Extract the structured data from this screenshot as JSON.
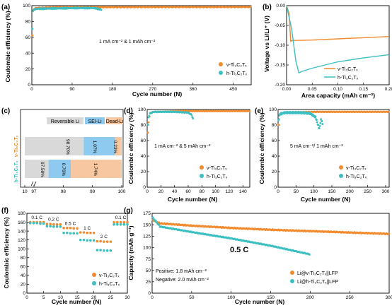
{
  "colors": {
    "v": "#f28a2e",
    "h": "#3cbfc1",
    "rev": "#d9d9d9",
    "sei": "#8ec9ef",
    "dead": "#f7c7a2",
    "axis": "#000000"
  },
  "chart_data": [
    {
      "panel": "(a)",
      "type": "scatter",
      "xlabel": "Cycle number (N)",
      "ylabel": "Coulombic efficiency (%)",
      "xlim": [
        0,
        490
      ],
      "ylim": [
        0,
        100
      ],
      "xticks": [
        0,
        90,
        180,
        270,
        360,
        450
      ],
      "yticks": [
        0,
        20,
        40,
        60,
        80,
        100
      ],
      "annotation": "1 mA cm-2 & 1 mAh cm-2",
      "legend": "bottom-right",
      "series": [
        {
          "name": "v-Ti3C2Tx",
          "points": [
            [
              1,
              62
            ],
            [
              2,
              88
            ],
            [
              3,
              94
            ],
            [
              5,
              96
            ],
            [
              10,
              97
            ],
            [
              50,
              98
            ],
            [
              100,
              98
            ],
            [
              200,
              98.2
            ],
            [
              300,
              98.3
            ],
            [
              400,
              98.3
            ],
            [
              490,
              98.4
            ]
          ]
        },
        {
          "name": "h-Ti3C2Tx",
          "points": [
            [
              1,
              70
            ],
            [
              2,
              90
            ],
            [
              3,
              94
            ],
            [
              5,
              95
            ],
            [
              10,
              96
            ],
            [
              50,
              96.5
            ],
            [
              100,
              97
            ],
            [
              140,
              97
            ],
            [
              155,
              95
            ]
          ]
        }
      ]
    },
    {
      "panel": "(b)",
      "type": "line",
      "xlabel": "Area capacity (mAh cm-2)",
      "ylabel": "Voltage vs Li/Li+ (V)",
      "xlim": [
        0,
        0.2
      ],
      "ylim": [
        -0.2,
        0.0
      ],
      "xticks": [
        0.0,
        0.05,
        0.1,
        0.15,
        0.2
      ],
      "yticks": [
        0.0,
        -0.05,
        -0.1,
        -0.15,
        -0.2
      ],
      "legend": "bottom-right",
      "series": [
        {
          "name": "v-Ti3C2Tx",
          "points": [
            [
              0.0,
              0.0
            ],
            [
              0.005,
              -0.02
            ],
            [
              0.008,
              -0.09
            ],
            [
              0.012,
              -0.088
            ],
            [
              0.05,
              -0.087
            ],
            [
              0.1,
              -0.084
            ],
            [
              0.15,
              -0.081
            ],
            [
              0.2,
              -0.078
            ]
          ]
        },
        {
          "name": "h-Ti3C2Tx",
          "points": [
            [
              0.0,
              0.0
            ],
            [
              0.01,
              -0.06
            ],
            [
              0.018,
              -0.14
            ],
            [
              0.024,
              -0.17
            ],
            [
              0.03,
              -0.166
            ],
            [
              0.05,
              -0.158
            ],
            [
              0.1,
              -0.142
            ],
            [
              0.15,
              -0.132
            ],
            [
              0.2,
              -0.124
            ]
          ]
        }
      ]
    },
    {
      "panel": "(c)",
      "type": "bar",
      "orientation": "horizontal",
      "xticks": [
        "10",
        "97",
        "98",
        "99",
        "100"
      ],
      "legend_entries": [
        "Reversible Li",
        "SEI-Li",
        "Dead-Li"
      ],
      "categories": [
        "v-Ti3C2Tx",
        "h-Ti3C2Tx"
      ],
      "series": [
        {
          "name": "v-Ti3C2Tx",
          "segments": [
            [
              "Reversible Li",
              98.7
            ],
            [
              "SEI-Li",
              1.07
            ],
            [
              "Dead-Li",
              0.23
            ]
          ],
          "labels": [
            "98.70%",
            "1.07%",
            "0.23%"
          ]
        },
        {
          "name": "h-Ti3C2Tx",
          "segments": [
            [
              "Reversible Li",
              97.5
            ],
            [
              "SEI-Li",
              0.76
            ],
            [
              "Dead-Li",
              1.74
            ]
          ],
          "labels": [
            "97.50%",
            "0.76%",
            "1.74%"
          ]
        }
      ]
    },
    {
      "panel": "(d)",
      "type": "scatter",
      "xlabel": "Cycle number (N)",
      "ylabel": "Coulombic efficiency (%)",
      "xlim": [
        0,
        150
      ],
      "ylim": [
        0,
        100
      ],
      "xticks": [
        0,
        20,
        40,
        60,
        80,
        100,
        120,
        140
      ],
      "yticks": [
        0,
        20,
        40,
        60,
        80,
        100
      ],
      "annotation": "1 mA cm-2 & 5 mAh cm-2",
      "legend": "bottom-right",
      "series": [
        {
          "name": "v-Ti3C2Tx",
          "points": [
            [
              1,
              70
            ],
            [
              2,
              82
            ],
            [
              3,
              90
            ],
            [
              5,
              96
            ],
            [
              10,
              97
            ],
            [
              50,
              98
            ],
            [
              100,
              98
            ],
            [
              150,
              98
            ]
          ]
        },
        {
          "name": "h-Ti3C2Tx",
          "points": [
            [
              1,
              80
            ],
            [
              2,
              90
            ],
            [
              4,
              95
            ],
            [
              10,
              97
            ],
            [
              40,
              97
            ],
            [
              60,
              96
            ],
            [
              65,
              93
            ],
            [
              67,
              88
            ]
          ]
        }
      ]
    },
    {
      "panel": "(e)",
      "type": "scatter",
      "xlabel": "Cycle number (N)",
      "ylabel": "Coulombic efficiency (%)",
      "xlim": [
        0,
        310
      ],
      "ylim": [
        0,
        100
      ],
      "xticks": [
        0,
        50,
        100,
        150,
        200,
        250,
        300
      ],
      "yticks": [
        0,
        20,
        40,
        60,
        80,
        100
      ],
      "annotation": "5 mA cm-2/ 1 mAh cm-2",
      "legend": "bottom-right",
      "series": [
        {
          "name": "v-Ti3C2Tx",
          "points": [
            [
              1,
              80
            ],
            [
              3,
              92
            ],
            [
              5,
              95
            ],
            [
              20,
              96
            ],
            [
              100,
              97
            ],
            [
              200,
              97
            ],
            [
              310,
              97
            ]
          ]
        },
        {
          "name": "h-Ti3C2Tx",
          "points": [
            [
              1,
              85
            ],
            [
              5,
              94
            ],
            [
              20,
              96
            ],
            [
              60,
              96
            ],
            [
              90,
              95
            ],
            [
              105,
              90
            ],
            [
              110,
              82
            ],
            [
              115,
              75
            ],
            [
              120,
              88
            ],
            [
              125,
              80
            ]
          ]
        }
      ]
    },
    {
      "panel": "(f)",
      "type": "scatter",
      "xlabel": "Cycle number (N)",
      "ylabel": "Coulombic efficiency (%)",
      "xlim": [
        0,
        30
      ],
      "ylim": [
        0,
        180
      ],
      "xticks": [
        0,
        5,
        10,
        15,
        20,
        25,
        30
      ],
      "yticks": [
        0,
        20,
        40,
        60,
        80,
        100,
        120,
        140,
        160,
        180
      ],
      "rate_labels": [
        "0.1 C",
        "0.2 C",
        "0.5 C",
        "1 C",
        "2 C",
        "0.1 C"
      ],
      "legend": "bottom-right",
      "series": [
        {
          "name": "v-Ti3C2Tx",
          "points": [
            [
              1,
              160
            ],
            [
              2,
              160
            ],
            [
              3,
              160
            ],
            [
              4,
              160
            ],
            [
              5,
              160
            ],
            [
              6,
              156
            ],
            [
              7,
              156
            ],
            [
              8,
              155
            ],
            [
              9,
              155
            ],
            [
              10,
              155
            ],
            [
              11,
              147
            ],
            [
              12,
              147
            ],
            [
              13,
              147
            ],
            [
              14,
              146
            ],
            [
              15,
              146
            ],
            [
              16,
              137
            ],
            [
              17,
              137
            ],
            [
              18,
              136
            ],
            [
              19,
              136
            ],
            [
              20,
              136
            ],
            [
              21,
              117
            ],
            [
              22,
              117
            ],
            [
              23,
              116
            ],
            [
              24,
              116
            ],
            [
              25,
              116
            ],
            [
              26,
              160
            ],
            [
              27,
              160
            ],
            [
              28,
              160
            ],
            [
              29,
              160
            ],
            [
              30,
              160
            ]
          ]
        },
        {
          "name": "h-Ti3C2Tx",
          "points": [
            [
              1,
              158
            ],
            [
              2,
              158
            ],
            [
              3,
              158
            ],
            [
              4,
              157
            ],
            [
              5,
              157
            ],
            [
              6,
              151
            ],
            [
              7,
              151
            ],
            [
              8,
              150
            ],
            [
              9,
              150
            ],
            [
              10,
              150
            ],
            [
              11,
              136
            ],
            [
              12,
              136
            ],
            [
              13,
              135
            ],
            [
              14,
              135
            ],
            [
              15,
              135
            ],
            [
              16,
              120
            ],
            [
              17,
              120
            ],
            [
              18,
              119
            ],
            [
              19,
              119
            ],
            [
              20,
              119
            ],
            [
              21,
              97
            ],
            [
              22,
              97
            ],
            [
              23,
              96
            ],
            [
              24,
              96
            ],
            [
              25,
              96
            ],
            [
              26,
              155
            ],
            [
              27,
              155
            ],
            [
              28,
              155
            ],
            [
              29,
              155
            ],
            [
              30,
              155
            ]
          ]
        }
      ]
    },
    {
      "panel": "(g)",
      "type": "scatter",
      "xlabel": "Cycle number (N)",
      "ylabel": "Capacity (mAh g-1)",
      "xlim": [
        0,
        300
      ],
      "ylim": [
        0,
        175
      ],
      "xticks": [
        0,
        50,
        100,
        150,
        200,
        250,
        300
      ],
      "yticks": [
        0,
        25,
        50,
        75,
        100,
        125,
        150,
        175
      ],
      "annotations": [
        "0.5 C",
        "Positive: 1.8 mAh cm-2",
        "Negative: 2.0 mAh cm-2"
      ],
      "legend": "bottom-right",
      "series": [
        {
          "name": "Li@v-Ti3C2Tx||LFP",
          "points": [
            [
              1,
              160
            ],
            [
              10,
              153
            ],
            [
              50,
              148
            ],
            [
              100,
              143
            ],
            [
              150,
              139
            ],
            [
              200,
              136
            ],
            [
              250,
              133
            ],
            [
              300,
              130
            ]
          ]
        },
        {
          "name": "Li@h-Ti3C2Tx||LFP",
          "points": [
            [
              1,
              165
            ],
            [
              10,
              146
            ],
            [
              30,
              140
            ],
            [
              50,
              134
            ],
            [
              100,
              120
            ],
            [
              150,
              104
            ],
            [
              200,
              85
            ]
          ]
        }
      ]
    }
  ],
  "panels": {
    "a": {
      "label": "(a)",
      "ylabel": "Coulombic efficiency (%)",
      "xlabel": "Cycle number (N)",
      "xticks": [
        "0",
        "90",
        "180",
        "270",
        "360",
        "450"
      ],
      "yticks": [
        "0",
        "20",
        "40",
        "60",
        "80",
        "100"
      ],
      "ann": "1 mA cm⁻² & 1 mAh cm⁻²",
      "leg_v": "v-Ti₃C₂Tₓ",
      "leg_h": "h-Ti₃C₂Tₓ"
    },
    "b": {
      "label": "(b)",
      "ylabel": "Voltage vs Li/Li⁺ (V)",
      "xlabel": "Area capacity (mAh cm⁻²)",
      "xticks": [
        "0.00",
        "0.05",
        "0.10",
        "0.15",
        "0.20"
      ],
      "yticks": [
        "0.00",
        "-0.05",
        "-0.10",
        "-0.15",
        "-0.20"
      ],
      "leg_v": "v-Ti₃C₂Tₓ",
      "leg_h": "h-Ti₃C₂Tₓ"
    },
    "c": {
      "label": "(c)",
      "xticks": [
        "10",
        "97",
        "98",
        "99",
        "100"
      ],
      "leg_rev": "Reversible Li",
      "leg_sei": "SEI-Li",
      "leg_dead": "Dead-Li",
      "cat_v": "v-Ti₃C₂Tₓ",
      "cat_h": "h-Ti₃C₂Tₓ",
      "v_rev": "98.70%",
      "v_sei": "1.07%",
      "v_dead": "0.23%",
      "h_rev": "97.50%",
      "h_sei": "0.76%",
      "h_dead": "1.74%"
    },
    "d": {
      "label": "(d)",
      "ylabel": "Coulombic efficiency (%)",
      "xlabel": "Cycle number (N)",
      "xticks": [
        "0",
        "20",
        "40",
        "60",
        "80",
        "100",
        "120",
        "140"
      ],
      "yticks": [
        "0",
        "20",
        "40",
        "60",
        "80",
        "100"
      ],
      "ann": "1 mA cm⁻² & 5 mAh cm⁻²",
      "leg_v": "v-Ti₃C₂Tₓ",
      "leg_h": "h-Ti₃C₂Tₓ"
    },
    "e": {
      "label": "(e)",
      "ylabel": "Coulombic efficiency (%)",
      "xlabel": "Cycle number (N)",
      "xticks": [
        "0",
        "50",
        "100",
        "150",
        "200",
        "250",
        "300"
      ],
      "yticks": [
        "0",
        "20",
        "40",
        "60",
        "80",
        "100"
      ],
      "ann": "5 mA cm⁻²/ 1 mAh cm⁻²",
      "leg_v": "v-Ti₃C₂Tₓ",
      "leg_h": "h-Ti₃C₂Tₓ"
    },
    "f": {
      "label": "(f)",
      "ylabel": "Coulombic efficiency (%)",
      "xlabel": "Cycle number (N)",
      "xticks": [
        "0",
        "5",
        "10",
        "15",
        "20",
        "25",
        "30"
      ],
      "yticks": [
        "0",
        "20",
        "40",
        "60",
        "80",
        "100",
        "120",
        "140",
        "160",
        "180"
      ],
      "rates": [
        "0.1 C",
        "0.2 C",
        "0.5 C",
        "1 C",
        "2 C",
        "0.1 C"
      ],
      "leg_v": "v-Ti₃C₂Tₓ",
      "leg_h": "h-Ti₃C₂Tₓ"
    },
    "g": {
      "label": "(g)",
      "ylabel": "Capacity (mAh g⁻¹)",
      "xlabel": "Cycle number (N)",
      "xticks": [
        "0",
        "50",
        "100",
        "150",
        "200",
        "250",
        "300"
      ],
      "yticks": [
        "0",
        "25",
        "50",
        "75",
        "100",
        "125",
        "150",
        "175"
      ],
      "ann_rate": "0.5 C",
      "ann_pos": "Positive: 1.8 mAh cm⁻²",
      "ann_neg": "Negative: 2.0 mAh cm⁻²",
      "leg_v": "Li@v-Ti₃C₂Tₓ||LFP",
      "leg_h": "Li@h-Ti₃C₂Tₓ||LFP"
    }
  }
}
